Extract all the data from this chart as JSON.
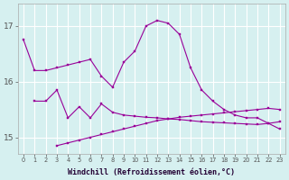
{
  "xlabel": "Windchill (Refroidissement éolien,°C)",
  "bg_color": "#d6f0f0",
  "grid_color": "#ffffff",
  "line_color": "#990099",
  "ylim": [
    14.7,
    17.4
  ],
  "yticks": [
    15,
    16,
    17
  ],
  "top_x": [
    0,
    1,
    2,
    3,
    4,
    5,
    6,
    7,
    8,
    9,
    10,
    11,
    12,
    13,
    14,
    15,
    16,
    17,
    18,
    19,
    20,
    21,
    22,
    23
  ],
  "top_y": [
    16.75,
    16.2,
    16.2,
    16.25,
    16.3,
    16.35,
    16.4,
    16.1,
    15.9,
    16.35,
    16.55,
    17.0,
    17.1,
    17.05,
    16.85,
    16.25,
    15.85,
    15.65,
    15.5,
    15.4,
    15.35,
    15.35,
    15.25,
    15.15
  ],
  "mid_x": [
    1,
    2,
    3,
    4,
    5,
    6,
    7,
    8,
    9,
    10,
    11,
    12,
    13,
    14,
    15,
    16,
    17,
    18,
    19,
    20,
    21,
    22,
    23
  ],
  "mid_y": [
    15.65,
    15.65,
    15.85,
    15.35,
    15.55,
    15.35,
    15.6,
    15.45,
    15.4,
    15.38,
    15.36,
    15.35,
    15.33,
    15.32,
    15.3,
    15.28,
    15.27,
    15.26,
    15.25,
    15.24,
    15.23,
    15.25,
    15.28
  ],
  "bot_x": [
    3,
    4,
    5,
    6,
    7,
    8,
    9,
    10,
    11,
    12,
    13,
    14,
    15,
    16,
    17,
    18,
    19,
    20,
    21,
    22,
    23
  ],
  "bot_y": [
    14.85,
    14.9,
    14.95,
    15.0,
    15.05,
    15.1,
    15.15,
    15.2,
    15.25,
    15.3,
    15.33,
    15.36,
    15.38,
    15.4,
    15.42,
    15.44,
    15.46,
    15.48,
    15.5,
    15.52,
    15.5
  ]
}
